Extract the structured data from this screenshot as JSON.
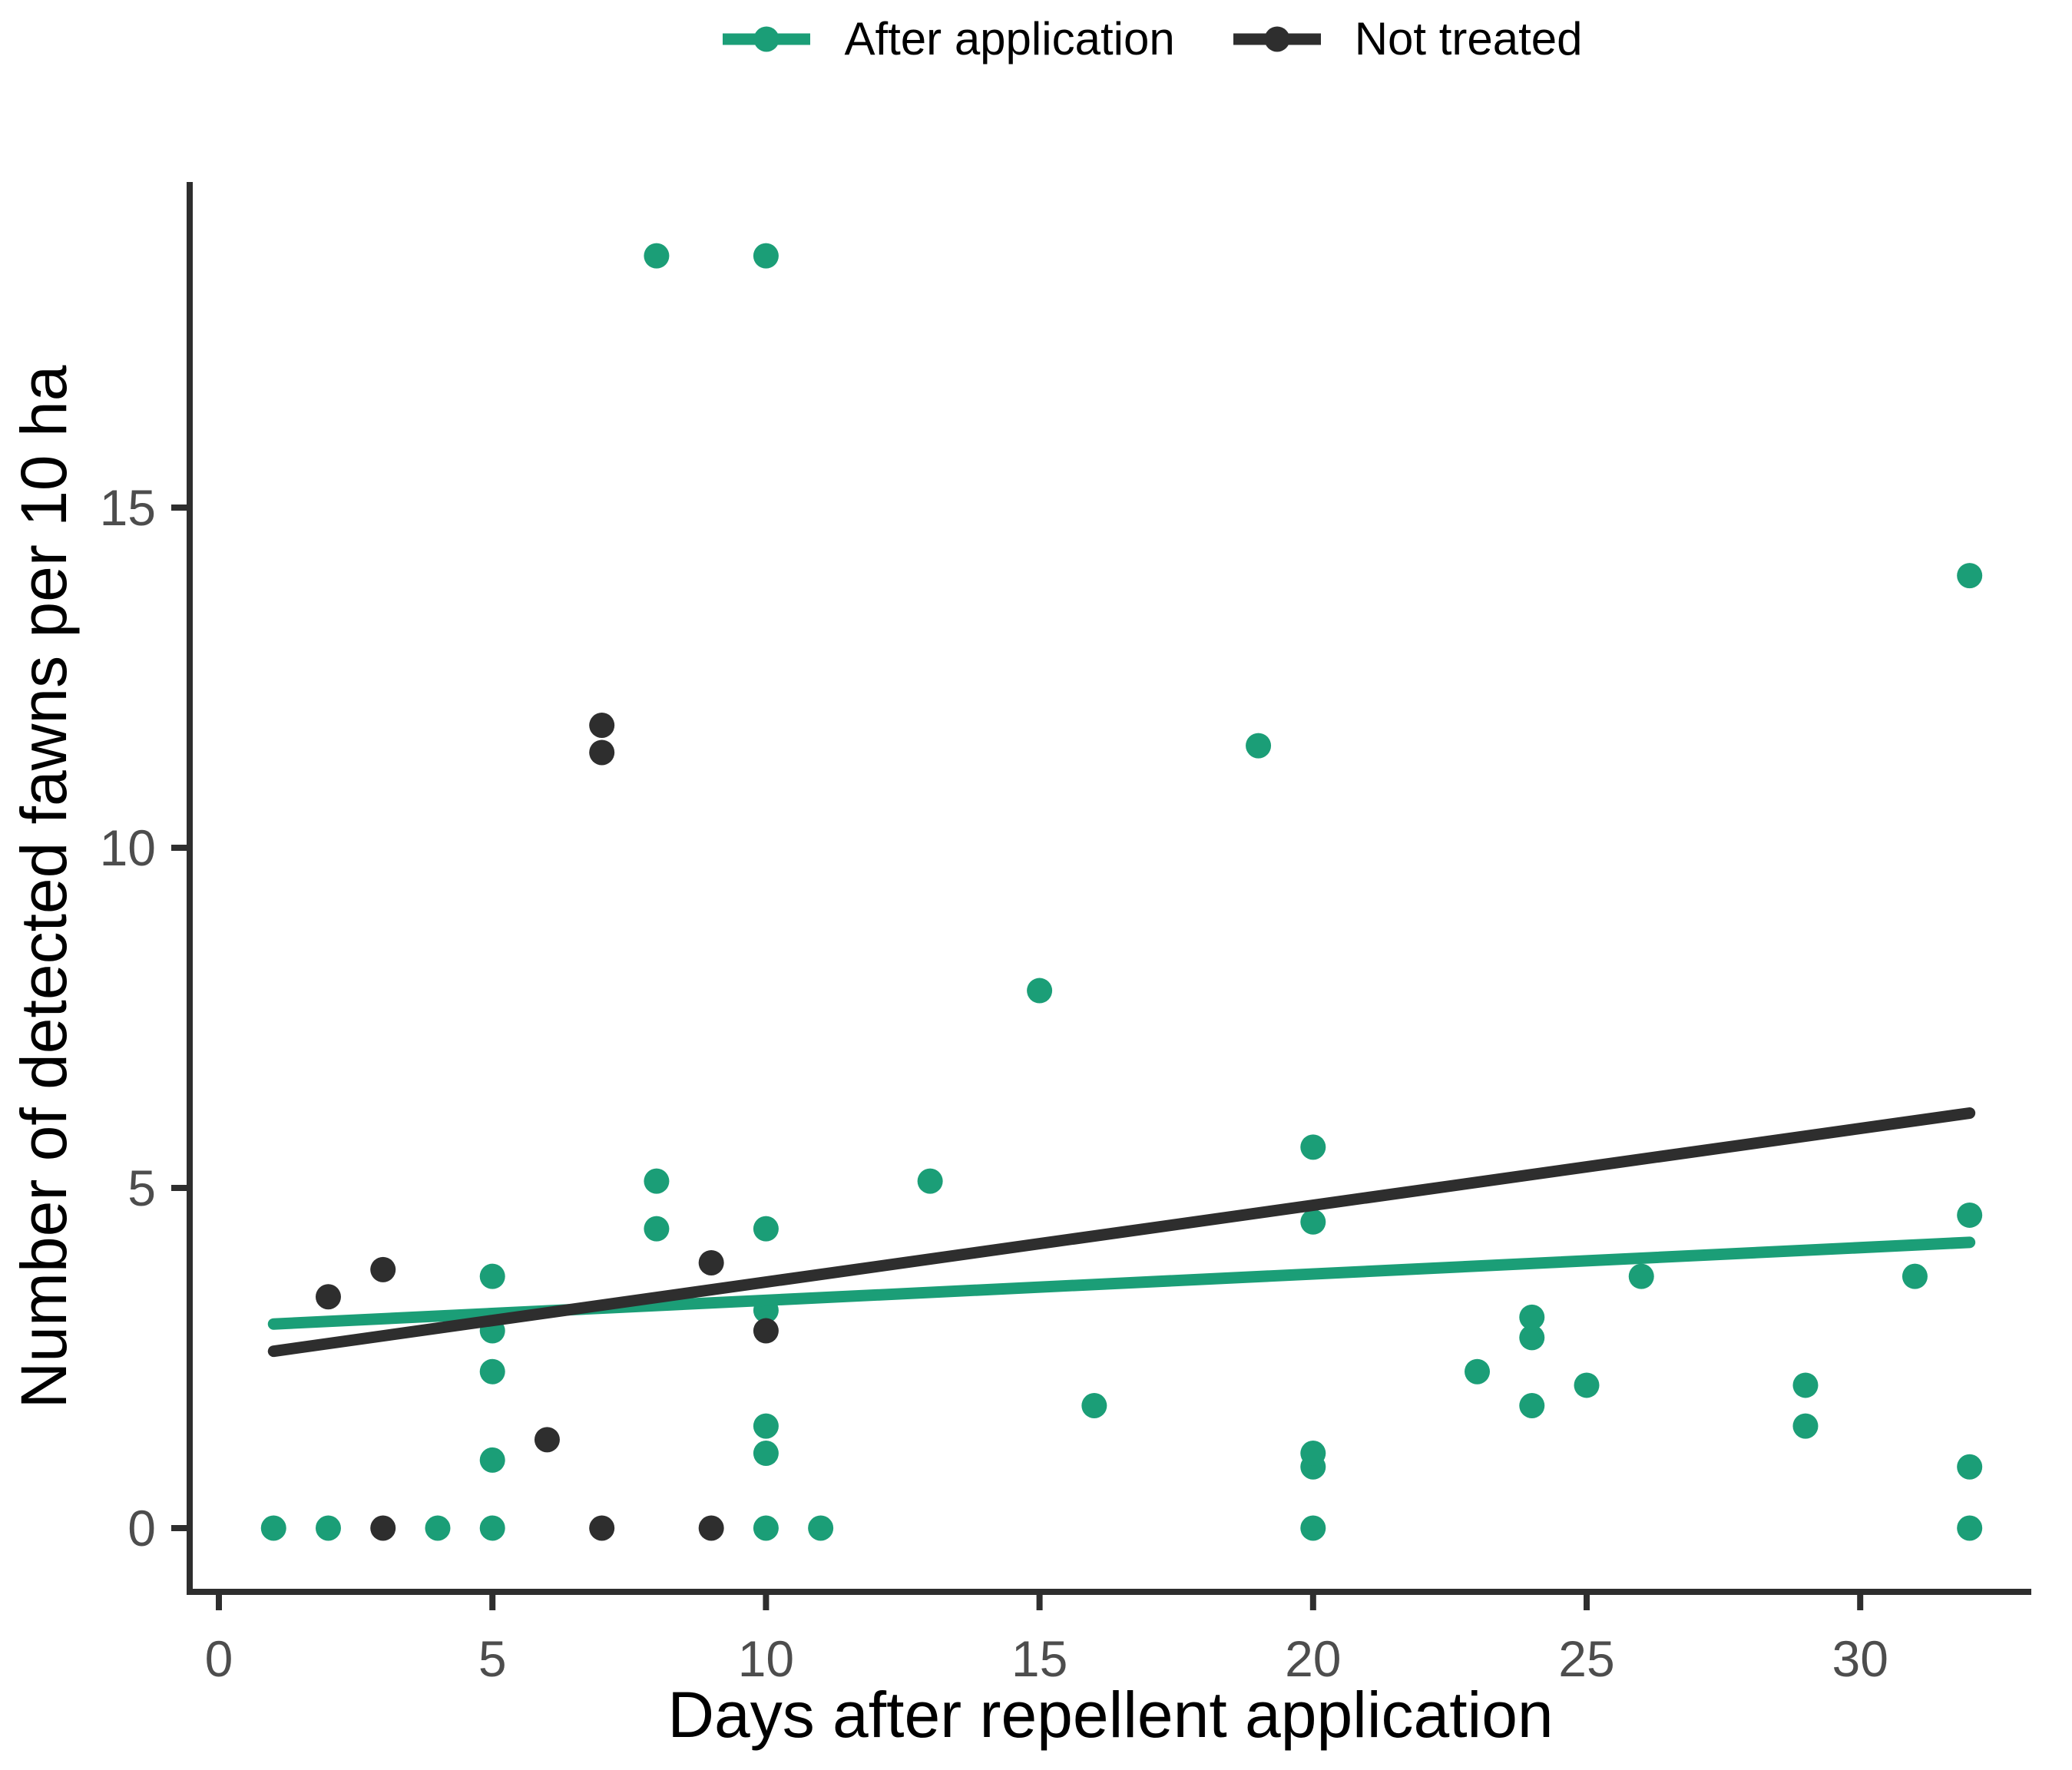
{
  "chart_data": {
    "type": "scatter",
    "title": "",
    "xlabel": "Days after repellent application",
    "ylabel": "Number of detected fawns per 10 ha",
    "x_ticks": [
      0,
      5,
      10,
      15,
      20,
      25,
      30
    ],
    "y_ticks": [
      0,
      5,
      10,
      15
    ],
    "xlim": [
      -0.5,
      33.3
    ],
    "ylim": [
      -0.9,
      19.8
    ],
    "grid": false,
    "legend_position": "top-center",
    "background_color": "#ffffff",
    "axis_color": "#2e2e2e",
    "tick_label_color": "#4d4d4d",
    "series": [
      {
        "name": "After application",
        "color": "#1b9e77",
        "points": [
          [
            1,
            0
          ],
          [
            2,
            0
          ],
          [
            4,
            0
          ],
          [
            5,
            0
          ],
          [
            5,
            1.0
          ],
          [
            5,
            2.3
          ],
          [
            5,
            2.9
          ],
          [
            5,
            3.7
          ],
          [
            8,
            4.4
          ],
          [
            8,
            5.1
          ],
          [
            8,
            18.7
          ],
          [
            10,
            0
          ],
          [
            10,
            1.1
          ],
          [
            10,
            1.5
          ],
          [
            10,
            3.2
          ],
          [
            10,
            4.4
          ],
          [
            10,
            18.7
          ],
          [
            11,
            0
          ],
          [
            13,
            5.1
          ],
          [
            15,
            7.9
          ],
          [
            16,
            1.8
          ],
          [
            19,
            11.5
          ],
          [
            20,
            0
          ],
          [
            20,
            0.9
          ],
          [
            20,
            1.1
          ],
          [
            20,
            4.5
          ],
          [
            20,
            5.6
          ],
          [
            23,
            2.3
          ],
          [
            24,
            1.8
          ],
          [
            24,
            2.8
          ],
          [
            24,
            3.1
          ],
          [
            25,
            2.1
          ],
          [
            26,
            3.7
          ],
          [
            29,
            1.5
          ],
          [
            29,
            2.1
          ],
          [
            31,
            3.7
          ],
          [
            32,
            0
          ],
          [
            32,
            0.9
          ],
          [
            32,
            4.6
          ],
          [
            32,
            14.0
          ]
        ],
        "trend": {
          "x1": 1,
          "y1": 3.0,
          "x2": 32,
          "y2": 4.2
        }
      },
      {
        "name": "Not treated",
        "color": "#2e2e2e",
        "points": [
          [
            2,
            3.4
          ],
          [
            3,
            0
          ],
          [
            3,
            3.8
          ],
          [
            6,
            1.3
          ],
          [
            7,
            0
          ],
          [
            7,
            11.4
          ],
          [
            7,
            11.8
          ],
          [
            9,
            0
          ],
          [
            9,
            3.9
          ],
          [
            10,
            2.9
          ]
        ],
        "trend": {
          "x1": 1,
          "y1": 2.6,
          "x2": 32,
          "y2": 6.1
        }
      }
    ]
  }
}
